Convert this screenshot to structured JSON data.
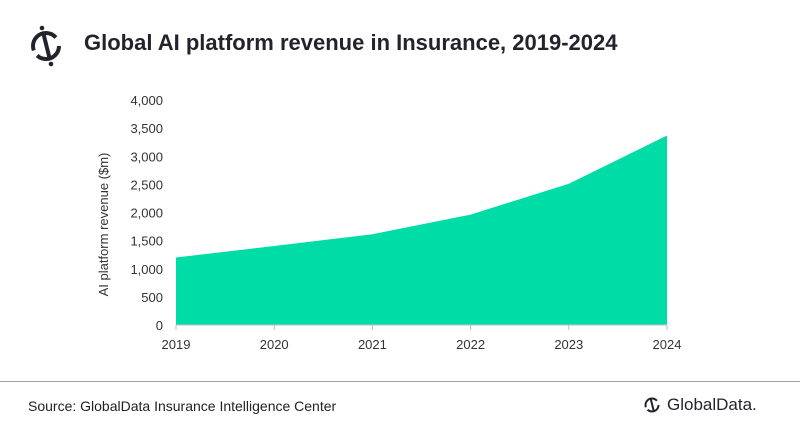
{
  "header": {
    "title": "Global AI platform revenue in Insurance, 2019-2024"
  },
  "footer": {
    "source": "Source: GlobalData Insurance Intelligence Center",
    "brand": "GlobalData."
  },
  "colors": {
    "fill": "#00dca5",
    "text": "#23232d"
  },
  "chart_data": {
    "type": "area",
    "title": "Global AI platform revenue in Insurance, 2019-2024",
    "xlabel": "",
    "ylabel": "AI platform revenue ($m)",
    "categories": [
      "2019",
      "2020",
      "2021",
      "2022",
      "2023",
      "2024"
    ],
    "series": [
      {
        "name": "AI platform revenue",
        "values": [
          1200,
          1405,
          1613,
          1962,
          2511,
          3368
        ]
      }
    ],
    "ylim": [
      0,
      4000
    ],
    "yticks": [
      0,
      500,
      1000,
      1500,
      2000,
      2500,
      3000,
      3500,
      4000
    ],
    "ytick_labels": [
      "0",
      "500",
      "1,000",
      "1,500",
      "2,000",
      "2,500",
      "3,000",
      "3,500",
      "4,000"
    ],
    "grid": false,
    "legend": "none"
  }
}
